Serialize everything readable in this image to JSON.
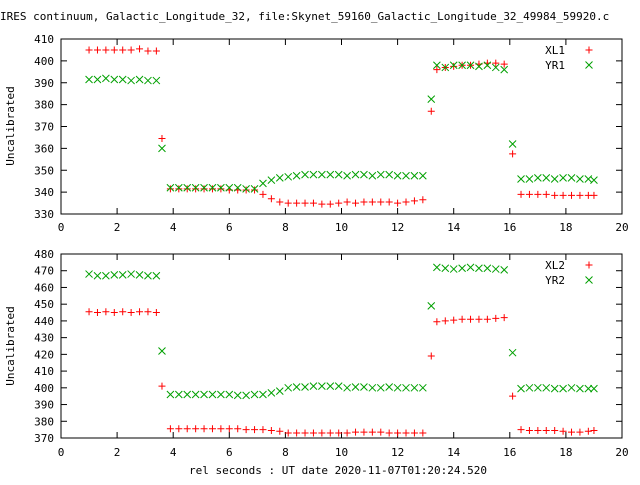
{
  "title": "IRES continuum, Galactic_Longitude_32, file:Skynet_59160_Galactic_Longitude_32_49984_59920.c",
  "xlabel": "rel seconds : UT date 2020-11-07T01:20:24.520",
  "colors": {
    "red": "#ff0000",
    "green": "#00a000",
    "text": "#000000"
  },
  "chart_data": [
    {
      "type": "scatter",
      "ylabel": "Uncalibrated",
      "xlim": [
        0,
        20
      ],
      "ylim": [
        330,
        410
      ],
      "xticks": [
        "0",
        "2",
        "4",
        "6",
        "8",
        "10",
        "12",
        "14",
        "16",
        "18",
        "20"
      ],
      "yticks": [
        "330",
        "340",
        "350",
        "360",
        "370",
        "380",
        "390",
        "400",
        "410"
      ],
      "legend_position": "top-right",
      "series": [
        {
          "name": "XL1",
          "marker": "plus",
          "color": "#ff0000",
          "x": [
            1.0,
            1.3,
            1.6,
            1.9,
            2.2,
            2.5,
            2.8,
            3.1,
            3.4,
            3.6,
            3.9,
            4.2,
            4.5,
            4.8,
            5.1,
            5.4,
            5.7,
            6.0,
            6.3,
            6.6,
            6.9,
            7.2,
            7.5,
            7.8,
            8.1,
            8.4,
            8.7,
            9.0,
            9.3,
            9.6,
            9.9,
            10.2,
            10.5,
            10.8,
            11.1,
            11.4,
            11.7,
            12.0,
            12.3,
            12.6,
            12.9,
            13.2,
            13.4,
            13.7,
            14.0,
            14.3,
            14.6,
            14.9,
            15.2,
            15.5,
            15.8,
            16.1,
            16.4,
            16.7,
            17.0,
            17.3,
            17.6,
            17.9,
            18.2,
            18.5,
            18.8,
            19.0
          ],
          "y": [
            405,
            405,
            405,
            405,
            405,
            405,
            405.5,
            404.5,
            404.5,
            364.5,
            341.5,
            341.5,
            341.5,
            341.5,
            341.5,
            341.5,
            341.5,
            341,
            341,
            341,
            341,
            339,
            337,
            335.5,
            335,
            335,
            335,
            335,
            334.5,
            334.5,
            335,
            335.5,
            335,
            335.5,
            335.5,
            335.5,
            335.5,
            335,
            335.5,
            336,
            336.5,
            377,
            396,
            397,
            397.5,
            398,
            398,
            398.5,
            399,
            399,
            398.5,
            357.5,
            339,
            339,
            339,
            339,
            338.5,
            338.5,
            338.5,
            338.5,
            338.5,
            338.5
          ]
        },
        {
          "name": "YR1",
          "marker": "cross",
          "color": "#00a000",
          "x": [
            1.0,
            1.3,
            1.6,
            1.9,
            2.2,
            2.5,
            2.8,
            3.1,
            3.4,
            3.6,
            3.9,
            4.2,
            4.5,
            4.8,
            5.1,
            5.4,
            5.7,
            6.0,
            6.3,
            6.6,
            6.9,
            7.2,
            7.5,
            7.8,
            8.1,
            8.4,
            8.7,
            9.0,
            9.3,
            9.6,
            9.9,
            10.2,
            10.5,
            10.8,
            11.1,
            11.4,
            11.7,
            12.0,
            12.3,
            12.6,
            12.9,
            13.2,
            13.4,
            13.7,
            14.0,
            14.3,
            14.6,
            14.9,
            15.2,
            15.5,
            15.8,
            16.1,
            16.4,
            16.7,
            17.0,
            17.3,
            17.6,
            17.9,
            18.2,
            18.5,
            18.8,
            19.0
          ],
          "y": [
            391.5,
            391.5,
            392,
            391.5,
            391.5,
            391,
            391.5,
            391,
            391,
            360,
            342,
            342,
            342,
            342,
            342,
            342,
            342,
            342,
            342,
            341.5,
            341.5,
            344,
            345.5,
            346.5,
            347,
            347.5,
            348,
            348,
            348,
            348,
            348,
            347.5,
            348,
            348,
            347.5,
            348,
            348,
            347.5,
            347.5,
            347.5,
            347.5,
            382.5,
            398,
            397,
            398,
            398,
            398,
            397.5,
            398,
            397,
            396,
            362,
            346,
            346,
            346.5,
            346.5,
            346,
            346.5,
            346.5,
            346,
            346,
            345.5
          ]
        }
      ]
    },
    {
      "type": "scatter",
      "ylabel": "Uncalibrated",
      "xlim": [
        0,
        20
      ],
      "ylim": [
        370,
        480
      ],
      "xticks": [
        "0",
        "2",
        "4",
        "6",
        "8",
        "10",
        "12",
        "14",
        "16",
        "18",
        "20"
      ],
      "yticks": [
        "370",
        "380",
        "390",
        "400",
        "410",
        "420",
        "430",
        "440",
        "450",
        "460",
        "470",
        "480"
      ],
      "legend_position": "top-right",
      "series": [
        {
          "name": "XL2",
          "marker": "plus",
          "color": "#ff0000",
          "x": [
            1.0,
            1.3,
            1.6,
            1.9,
            2.2,
            2.5,
            2.8,
            3.1,
            3.4,
            3.6,
            3.9,
            4.2,
            4.5,
            4.8,
            5.1,
            5.4,
            5.7,
            6.0,
            6.3,
            6.6,
            6.9,
            7.2,
            7.5,
            7.8,
            8.1,
            8.4,
            8.7,
            9.0,
            9.3,
            9.6,
            9.9,
            10.2,
            10.5,
            10.8,
            11.1,
            11.4,
            11.7,
            12.0,
            12.3,
            12.6,
            12.9,
            13.2,
            13.4,
            13.7,
            14.0,
            14.3,
            14.6,
            14.9,
            15.2,
            15.5,
            15.8,
            16.1,
            16.4,
            16.7,
            17.0,
            17.3,
            17.6,
            17.9,
            18.2,
            18.5,
            18.8,
            19.0
          ],
          "y": [
            445.5,
            445,
            445.5,
            445,
            445.5,
            445,
            445.5,
            445.5,
            445,
            401,
            375.5,
            375.5,
            375.5,
            375.5,
            375.5,
            375.5,
            375.5,
            375.5,
            375.5,
            375,
            375,
            375,
            374.5,
            374,
            373,
            373,
            373,
            373,
            373,
            373,
            373,
            373,
            373.5,
            373.5,
            373.5,
            373.5,
            373,
            373,
            373,
            373,
            373,
            419,
            439.5,
            440,
            440.5,
            441,
            441,
            441,
            441,
            441.5,
            442,
            395,
            375,
            374.5,
            374.5,
            374.5,
            374.5,
            374,
            373.5,
            373.5,
            374,
            374.5
          ]
        },
        {
          "name": "YR2",
          "marker": "cross",
          "color": "#00a000",
          "x": [
            1.0,
            1.3,
            1.6,
            1.9,
            2.2,
            2.5,
            2.8,
            3.1,
            3.4,
            3.6,
            3.9,
            4.2,
            4.5,
            4.8,
            5.1,
            5.4,
            5.7,
            6.0,
            6.3,
            6.6,
            6.9,
            7.2,
            7.5,
            7.8,
            8.1,
            8.4,
            8.7,
            9.0,
            9.3,
            9.6,
            9.9,
            10.2,
            10.5,
            10.8,
            11.1,
            11.4,
            11.7,
            12.0,
            12.3,
            12.6,
            12.9,
            13.2,
            13.4,
            13.7,
            14.0,
            14.3,
            14.6,
            14.9,
            15.2,
            15.5,
            15.8,
            16.1,
            16.4,
            16.7,
            17.0,
            17.3,
            17.6,
            17.9,
            18.2,
            18.5,
            18.8,
            19.0
          ],
          "y": [
            468,
            467,
            467,
            467.5,
            467.5,
            468,
            467.5,
            467,
            467,
            422,
            396,
            396,
            396,
            396,
            396,
            396,
            396,
            396,
            395.5,
            395.5,
            396,
            396,
            397,
            398,
            400,
            400.5,
            400.5,
            401,
            401,
            401,
            401,
            400,
            400.5,
            400.5,
            400,
            400,
            400.5,
            400,
            400,
            400,
            400,
            449,
            472,
            471.5,
            471,
            471.5,
            472,
            471.5,
            471.5,
            471,
            470.5,
            421,
            399.5,
            400,
            400,
            400,
            399.5,
            399.5,
            400,
            399.5,
            399.5,
            399.5
          ]
        }
      ]
    }
  ]
}
